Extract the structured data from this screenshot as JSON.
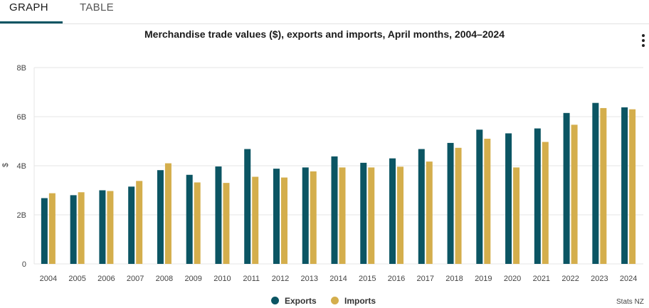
{
  "tabs": [
    {
      "label": "GRAPH",
      "active": true
    },
    {
      "label": "TABLE",
      "active": false
    }
  ],
  "menu_icon": "more-vertical-icon",
  "credit": "Stats NZ",
  "colors": {
    "exports": "#0b5563",
    "imports": "#d4ae4c",
    "grid": "#e6e6e6"
  },
  "chart_data": {
    "type": "bar",
    "title": "Merchandise trade values ($), exports and imports, April months, 2004–2024",
    "ylabel": "$",
    "xlabel": "",
    "ylim": [
      0,
      8
    ],
    "yticks": [
      {
        "value": 0,
        "label": "0"
      },
      {
        "value": 2,
        "label": "2B"
      },
      {
        "value": 4,
        "label": "4B"
      },
      {
        "value": 6,
        "label": "6B"
      },
      {
        "value": 8,
        "label": "8B"
      }
    ],
    "grid": true,
    "legend": "bottom-center",
    "categories": [
      "2004",
      "2005",
      "2006",
      "2007",
      "2008",
      "2009",
      "2010",
      "2011",
      "2012",
      "2013",
      "2014",
      "2015",
      "2016",
      "2017",
      "2018",
      "2019",
      "2020",
      "2021",
      "2022",
      "2023",
      "2024"
    ],
    "series": [
      {
        "name": "Exports",
        "values": [
          2.68,
          2.8,
          3.0,
          3.15,
          3.82,
          3.63,
          3.97,
          4.68,
          3.88,
          3.93,
          4.38,
          4.12,
          4.3,
          4.68,
          4.93,
          5.47,
          5.32,
          5.52,
          6.15,
          6.56,
          6.38
        ]
      },
      {
        "name": "Imports",
        "values": [
          2.88,
          2.92,
          2.97,
          3.38,
          4.1,
          3.32,
          3.3,
          3.55,
          3.52,
          3.77,
          3.93,
          3.93,
          3.96,
          4.17,
          4.73,
          5.1,
          3.93,
          4.97,
          5.67,
          6.35,
          6.3
        ]
      }
    ]
  }
}
